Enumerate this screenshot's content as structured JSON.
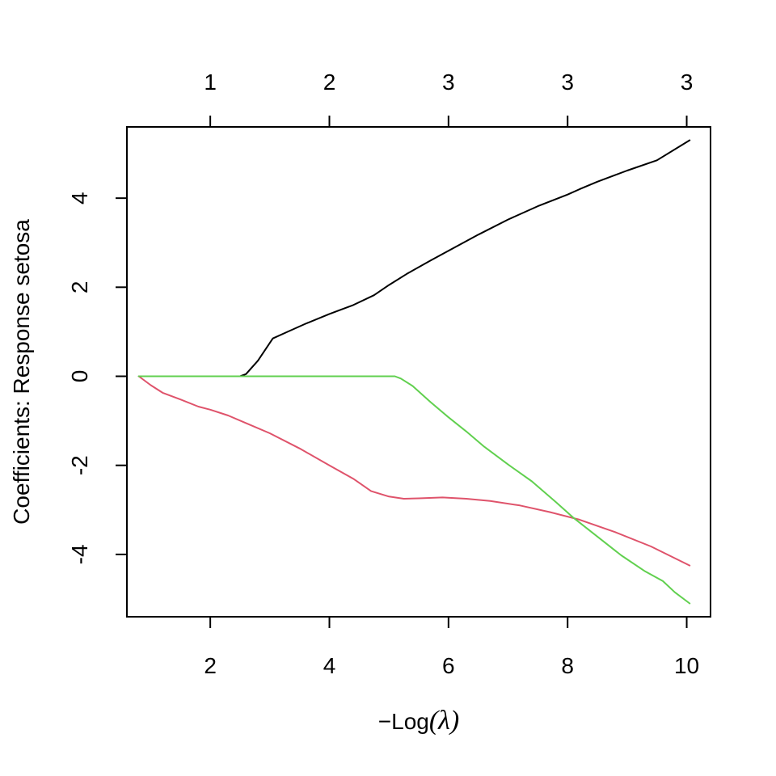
{
  "chart_data": {
    "type": "line",
    "xlabel_prefix": "−Log",
    "xlabel_open": "(",
    "xlabel_symbol": "λ",
    "xlabel_close": ")",
    "ylabel": "Coefficients: Response setosa",
    "xlim": [
      0.6,
      10.4
    ],
    "ylim": [
      -5.4,
      5.6
    ],
    "grid": false,
    "x_ticks": [
      {
        "value": 2,
        "label": "2"
      },
      {
        "value": 4,
        "label": "4"
      },
      {
        "value": 6,
        "label": "6"
      },
      {
        "value": 8,
        "label": "8"
      },
      {
        "value": 10,
        "label": "10"
      }
    ],
    "y_ticks": [
      {
        "value": 4,
        "label": "4"
      },
      {
        "value": 2,
        "label": "2"
      },
      {
        "value": 0,
        "label": "0"
      },
      {
        "value": -2,
        "label": "-2"
      },
      {
        "value": -4,
        "label": "-4"
      }
    ],
    "top_ticks": [
      {
        "value": 2,
        "label": "1"
      },
      {
        "value": 4,
        "label": "2"
      },
      {
        "value": 6,
        "label": "3"
      },
      {
        "value": 8,
        "label": "3"
      },
      {
        "value": 10,
        "label": "3"
      }
    ],
    "series": [
      {
        "color": "#000000",
        "points": [
          [
            0.8,
            0
          ],
          [
            1.5,
            0
          ],
          [
            2.0,
            0
          ],
          [
            2.5,
            0
          ],
          [
            2.6,
            0.05
          ],
          [
            2.8,
            0.35
          ],
          [
            3.05,
            0.85
          ],
          [
            3.3,
            1.0
          ],
          [
            3.6,
            1.18
          ],
          [
            4.0,
            1.4
          ],
          [
            4.4,
            1.6
          ],
          [
            4.75,
            1.82
          ],
          [
            5.0,
            2.05
          ],
          [
            5.3,
            2.3
          ],
          [
            5.7,
            2.6
          ],
          [
            6.0,
            2.82
          ],
          [
            6.5,
            3.18
          ],
          [
            7.0,
            3.52
          ],
          [
            7.5,
            3.82
          ],
          [
            8.0,
            4.08
          ],
          [
            8.2,
            4.2
          ],
          [
            8.5,
            4.37
          ],
          [
            9.0,
            4.62
          ],
          [
            9.5,
            4.85
          ],
          [
            10.05,
            5.3
          ]
        ]
      },
      {
        "color": "#DF536B",
        "points": [
          [
            0.8,
            0
          ],
          [
            1.0,
            -0.2
          ],
          [
            1.2,
            -0.37
          ],
          [
            1.5,
            -0.52
          ],
          [
            1.8,
            -0.68
          ],
          [
            2.0,
            -0.75
          ],
          [
            2.3,
            -0.88
          ],
          [
            2.6,
            -1.05
          ],
          [
            3.0,
            -1.28
          ],
          [
            3.5,
            -1.62
          ],
          [
            4.0,
            -2.0
          ],
          [
            4.4,
            -2.3
          ],
          [
            4.7,
            -2.58
          ],
          [
            5.0,
            -2.7
          ],
          [
            5.25,
            -2.75
          ],
          [
            5.5,
            -2.74
          ],
          [
            5.9,
            -2.72
          ],
          [
            6.3,
            -2.75
          ],
          [
            6.7,
            -2.8
          ],
          [
            7.2,
            -2.9
          ],
          [
            7.7,
            -3.05
          ],
          [
            8.2,
            -3.22
          ],
          [
            8.8,
            -3.5
          ],
          [
            9.4,
            -3.82
          ],
          [
            10.05,
            -4.25
          ]
        ]
      },
      {
        "color": "#61D04F",
        "points": [
          [
            0.8,
            0
          ],
          [
            2.0,
            0
          ],
          [
            3.0,
            0
          ],
          [
            4.0,
            0
          ],
          [
            4.8,
            0
          ],
          [
            5.1,
            0
          ],
          [
            5.2,
            -0.05
          ],
          [
            5.4,
            -0.22
          ],
          [
            5.7,
            -0.58
          ],
          [
            6.0,
            -0.92
          ],
          [
            6.3,
            -1.24
          ],
          [
            6.6,
            -1.58
          ],
          [
            7.0,
            -1.98
          ],
          [
            7.4,
            -2.36
          ],
          [
            7.8,
            -2.82
          ],
          [
            8.1,
            -3.18
          ],
          [
            8.5,
            -3.6
          ],
          [
            8.9,
            -4.02
          ],
          [
            9.3,
            -4.38
          ],
          [
            9.6,
            -4.6
          ],
          [
            9.8,
            -4.85
          ],
          [
            10.05,
            -5.1
          ]
        ]
      }
    ]
  }
}
